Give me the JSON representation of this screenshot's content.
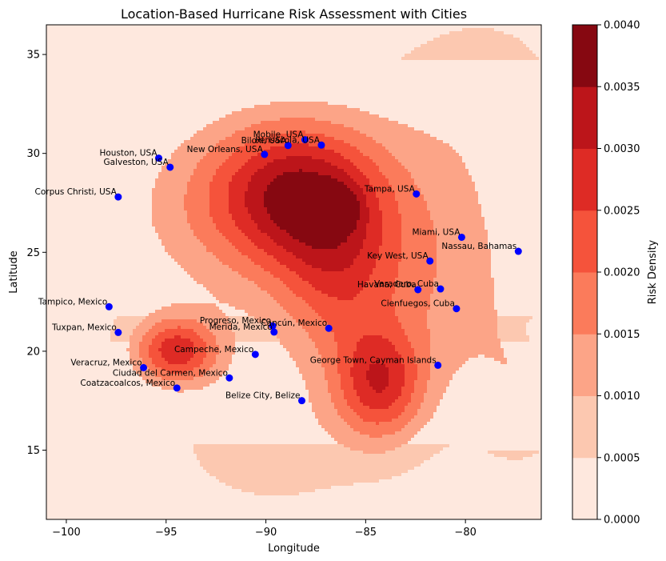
{
  "chart_data": {
    "type": "contour",
    "title": "Location-Based Hurricane Risk Assessment with Cities",
    "xlabel": "Longitude",
    "ylabel": "Latitude",
    "xlim": [
      -101,
      -76.2
    ],
    "ylim": [
      11.5,
      36.5
    ],
    "x_ticks": [
      -100,
      -95,
      -90,
      -85,
      -80
    ],
    "y_ticks": [
      15,
      20,
      25,
      30,
      35
    ],
    "colorbar": {
      "label": "Risk Density",
      "levels": [
        0.0,
        0.0005,
        0.001,
        0.0015,
        0.002,
        0.0025,
        0.003,
        0.0035,
        0.004
      ],
      "tick_labels": [
        "0.0000",
        "0.0005",
        "0.0010",
        "0.0015",
        "0.0020",
        "0.0025",
        "0.0030",
        "0.0035",
        "0.0040"
      ],
      "colors": [
        "#fee8de",
        "#fcc8b0",
        "#fca487",
        "#fb7b5b",
        "#f5533b",
        "#de2b25",
        "#bc151a",
        "#860811"
      ]
    },
    "density_blobs": [
      {
        "x": -88.5,
        "y": 28.0,
        "sx": 3.0,
        "sy": 2.6,
        "w": 0.0027
      },
      {
        "x": -84.3,
        "y": 18.3,
        "sx": 1.6,
        "sy": 2.0,
        "w": 0.0022
      },
      {
        "x": -94.5,
        "y": 20.0,
        "sx": 1.5,
        "sy": 1.2,
        "w": 0.0024
      },
      {
        "x": -86.5,
        "y": 24.0,
        "sx": 2.0,
        "sy": 3.0,
        "w": 0.0012
      },
      {
        "x": -82.0,
        "y": 24.0,
        "sx": 3.5,
        "sy": 4.0,
        "w": 0.0009
      },
      {
        "x": -86.2,
        "y": 27.3,
        "sx": 0.7,
        "sy": 0.8,
        "w": 0.0008
      },
      {
        "x": -93.0,
        "y": 27.5,
        "sx": 4.5,
        "sy": 3.5,
        "w": 0.0007
      },
      {
        "x": -87.5,
        "y": 22.0,
        "sx": 8.0,
        "sy": 8.0,
        "w": 0.0006
      },
      {
        "x": -79.0,
        "y": 33.0,
        "sx": 4.0,
        "sy": 4.0,
        "w": 0.0006
      },
      {
        "x": -77.0,
        "y": 18.0,
        "sx": 2.0,
        "sy": 3.0,
        "w": 0.0006
      },
      {
        "x": -90.0,
        "y": 15.0,
        "sx": 3.0,
        "sy": 2.0,
        "w": 0.0004
      },
      {
        "x": -76.5,
        "y": 21.0,
        "sx": 0.6,
        "sy": 0.6,
        "w": -0.0005
      }
    ],
    "cities": [
      {
        "name": "Houston, USA",
        "lon": -95.37,
        "lat": 29.76
      },
      {
        "name": "Galveston, USA",
        "lon": -94.8,
        "lat": 29.3
      },
      {
        "name": "New Orleans, USA",
        "lon": -90.07,
        "lat": 29.95
      },
      {
        "name": "Mobile, USA",
        "lon": -88.04,
        "lat": 30.69
      },
      {
        "name": "Biloxi, USA",
        "lon": -88.89,
        "lat": 30.4
      },
      {
        "name": "Pensacola, USA",
        "lon": -87.22,
        "lat": 30.42
      },
      {
        "name": "Corpus Christi, USA",
        "lon": -97.4,
        "lat": 27.8
      },
      {
        "name": "Tampa, USA",
        "lon": -82.46,
        "lat": 27.95
      },
      {
        "name": "Miami, USA",
        "lon": -80.19,
        "lat": 25.76
      },
      {
        "name": "Nassau, Bahamas",
        "lon": -77.35,
        "lat": 25.05
      },
      {
        "name": "Key West, USA",
        "lon": -81.78,
        "lat": 24.56
      },
      {
        "name": "Havana, Cuba",
        "lon": -82.38,
        "lat": 23.11
      },
      {
        "name": "Varadero, Cuba",
        "lon": -81.25,
        "lat": 23.15
      },
      {
        "name": "Cienfuegos, Cuba",
        "lon": -80.45,
        "lat": 22.15
      },
      {
        "name": "Tampico, Mexico",
        "lon": -97.86,
        "lat": 22.25
      },
      {
        "name": "Tuxpan, Mexico",
        "lon": -97.4,
        "lat": 20.95
      },
      {
        "name": "Progreso, Mexico",
        "lon": -89.66,
        "lat": 21.28
      },
      {
        "name": "Merida, Mexico",
        "lon": -89.59,
        "lat": 20.97
      },
      {
        "name": "Cancún, Mexico",
        "lon": -86.85,
        "lat": 21.16
      },
      {
        "name": "Campeche, Mexico",
        "lon": -90.53,
        "lat": 19.84
      },
      {
        "name": "Veracruz, Mexico",
        "lon": -96.13,
        "lat": 19.17
      },
      {
        "name": "Ciudad del Carmen, Mexico",
        "lon": -91.83,
        "lat": 18.65
      },
      {
        "name": "Coatzacoalcos, Mexico",
        "lon": -94.46,
        "lat": 18.14
      },
      {
        "name": "George Town, Cayman Islands",
        "lon": -81.38,
        "lat": 19.29
      },
      {
        "name": "Belize City, Belize",
        "lon": -88.2,
        "lat": 17.5
      }
    ]
  }
}
